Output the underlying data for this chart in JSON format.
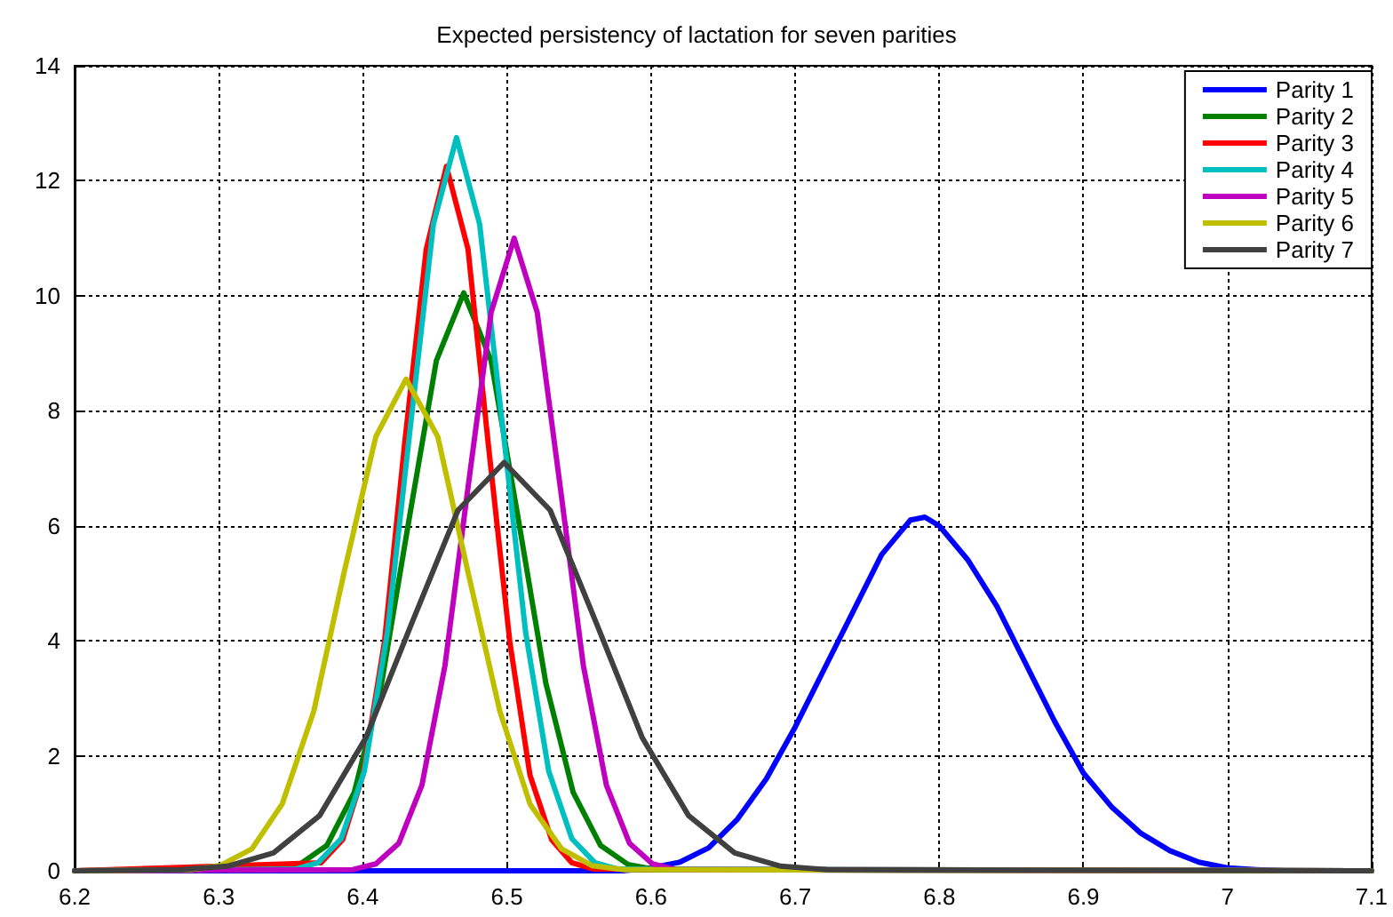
{
  "chart_data": {
    "type": "line",
    "title": "Expected persistency of lactation for seven parities",
    "xlim": [
      6.2,
      7.1
    ],
    "xticks": [
      6.2,
      6.3,
      6.4,
      6.5,
      6.6,
      6.7,
      6.8,
      6.9,
      7,
      7.1
    ],
    "ylim": [
      0,
      14
    ],
    "yticks": [
      0,
      2,
      4,
      6,
      8,
      10,
      12,
      14
    ],
    "grid": true,
    "legend": "top right",
    "marker": "none",
    "line_style": "solid",
    "series": [
      {
        "name": "Parity 1",
        "color": "#0000ff",
        "x": [
          6.2,
          6.58,
          6.6,
          6.62,
          6.64,
          6.66,
          6.68,
          6.7,
          6.72,
          6.74,
          6.76,
          6.78,
          6.79,
          6.8,
          6.82,
          6.84,
          6.86,
          6.88,
          6.9,
          6.92,
          6.94,
          6.96,
          6.98,
          7,
          7.02,
          7.04,
          7.1
        ],
        "values": [
          0,
          0,
          0.05,
          0.15,
          0.4,
          0.9,
          1.6,
          2.5,
          3.5,
          4.5,
          5.5,
          6.1,
          6.15,
          6,
          5.4,
          4.6,
          3.6,
          2.6,
          1.7,
          1.1,
          0.65,
          0.35,
          0.15,
          0.05,
          0.02,
          0,
          0
        ]
      },
      {
        "name": "Parity 2",
        "color": "#008000",
        "x": [
          6.2,
          6.337,
          6.356,
          6.375,
          6.394,
          6.413,
          6.432,
          6.451,
          6.47,
          6.489,
          6.508,
          6.527,
          6.546,
          6.565,
          6.584,
          6.603,
          7.1
        ],
        "values": [
          0,
          0.02,
          0.11,
          0.44,
          1.36,
          3.26,
          6.1,
          8.87,
          10.05,
          8.87,
          6.1,
          3.26,
          1.36,
          0.44,
          0.11,
          0.02,
          0
        ]
      },
      {
        "name": "Parity 3",
        "color": "#ff0000",
        "x": [
          6.2,
          6.371,
          6.386,
          6.4,
          6.415,
          6.429,
          6.444,
          6.458,
          6.473,
          6.487,
          6.502,
          6.516,
          6.531,
          6.545,
          6.56,
          7.1
        ],
        "values": [
          0,
          0.14,
          0.54,
          1.66,
          3.98,
          7.43,
          10.81,
          12.25,
          10.81,
          7.43,
          3.98,
          1.66,
          0.54,
          0.14,
          0.03,
          0
        ]
      },
      {
        "name": "Parity 4",
        "color": "#00bfbf",
        "x": [
          6.2,
          6.353,
          6.369,
          6.385,
          6.401,
          6.417,
          6.433,
          6.449,
          6.465,
          6.481,
          6.497,
          6.513,
          6.529,
          6.545,
          6.561,
          6.577,
          7.1
        ],
        "values": [
          0,
          0.03,
          0.14,
          0.56,
          1.73,
          4.14,
          7.73,
          11.25,
          12.75,
          11.25,
          7.73,
          4.14,
          1.73,
          0.56,
          0.14,
          0.03,
          0
        ]
      },
      {
        "name": "Parity 5",
        "color": "#bf00bf",
        "x": [
          6.2,
          6.393,
          6.409,
          6.425,
          6.441,
          6.457,
          6.473,
          6.489,
          6.505,
          6.521,
          6.537,
          6.553,
          6.569,
          6.585,
          6.601,
          6.617,
          7.1
        ],
        "values": [
          0,
          0.02,
          0.12,
          0.48,
          1.49,
          3.57,
          6.67,
          9.71,
          11,
          9.71,
          6.67,
          3.57,
          1.49,
          0.48,
          0.12,
          0.02,
          0
        ]
      },
      {
        "name": "Parity 6",
        "color": "#bfbf00",
        "x": [
          6.2,
          6.28,
          6.301,
          6.323,
          6.344,
          6.366,
          6.387,
          6.409,
          6.43,
          6.452,
          6.473,
          6.495,
          6.516,
          6.538,
          6.559,
          6.581,
          7.1
        ],
        "values": [
          0,
          0.02,
          0.09,
          0.38,
          1.16,
          2.78,
          5.19,
          7.55,
          8.55,
          7.55,
          5.19,
          2.78,
          1.16,
          0.38,
          0.09,
          0.02,
          0
        ]
      },
      {
        "name": "Parity 7",
        "color": "#404040",
        "x": [
          6.2,
          6.274,
          6.306,
          6.338,
          6.37,
          6.402,
          6.434,
          6.466,
          6.498,
          6.53,
          6.562,
          6.594,
          6.626,
          6.658,
          6.69,
          6.722,
          7.1
        ],
        "values": [
          0,
          0.02,
          0.08,
          0.31,
          0.96,
          2.31,
          4.31,
          6.27,
          7.1,
          6.27,
          4.31,
          2.31,
          0.96,
          0.31,
          0.08,
          0.02,
          0
        ]
      }
    ]
  }
}
